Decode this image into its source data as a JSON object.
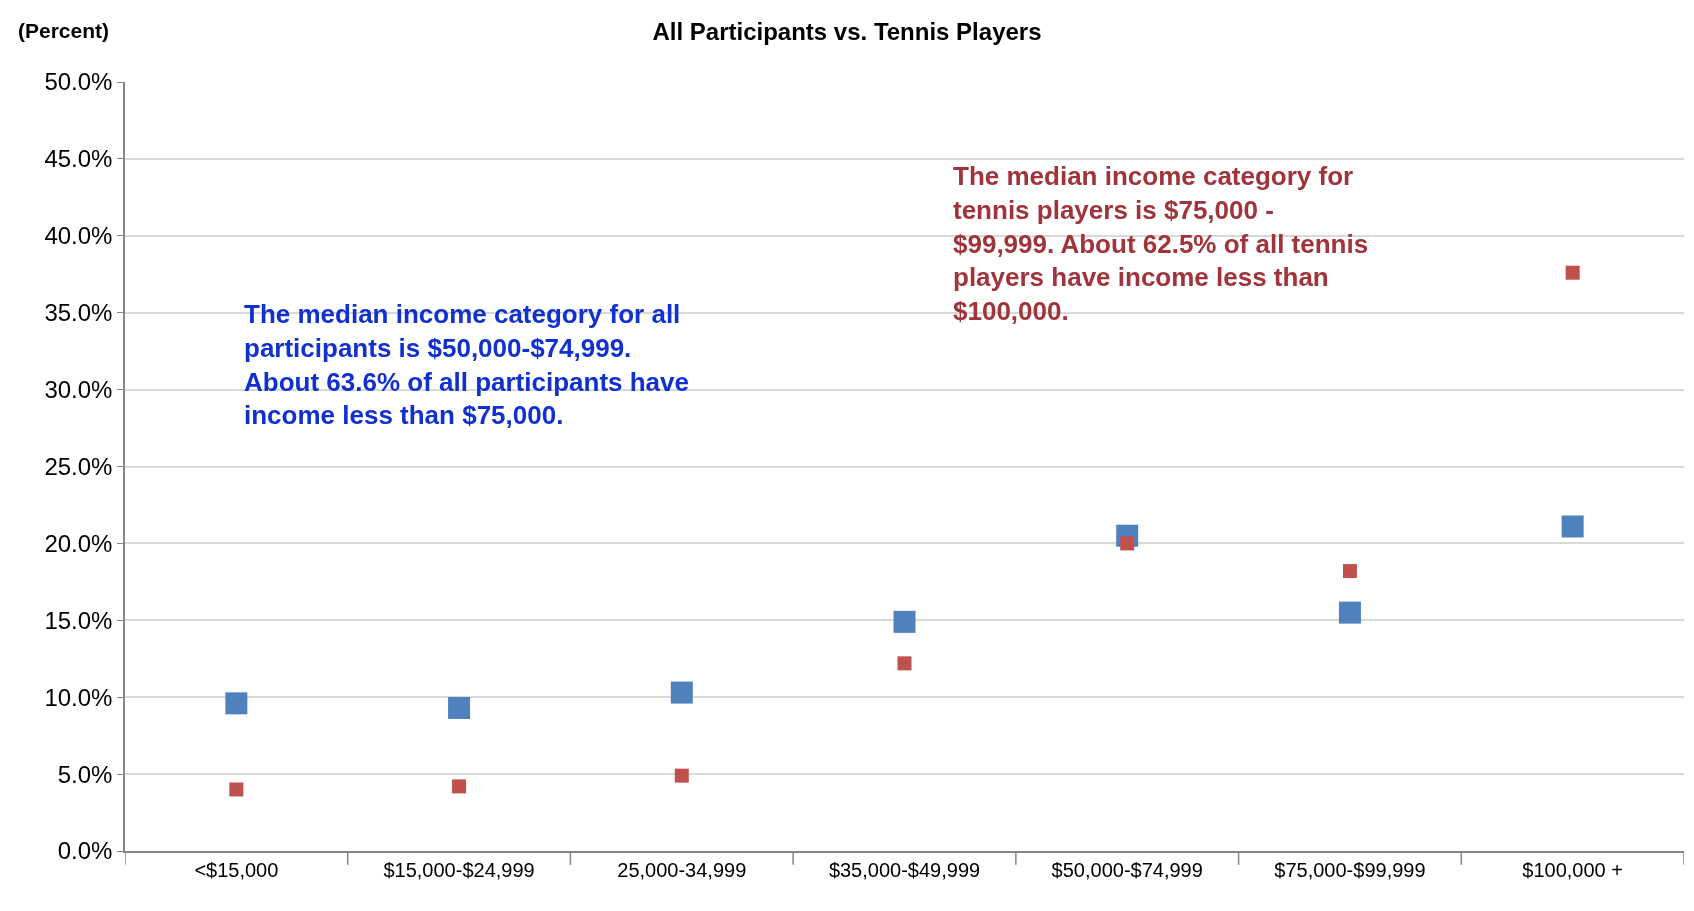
{
  "chart_data": {
    "type": "scatter",
    "title": "All Participants vs. Tennis Players",
    "ylabel": "(Percent)",
    "categories": [
      "<$15,000",
      "$15,000-$24,999",
      "25,000-34,999",
      "$35,000-$49,999",
      "$50,000-$74,999",
      "$75,000-$99,999",
      "$100,000 +"
    ],
    "series": [
      {
        "color": "#4f81bd",
        "values": [
          9.6,
          9.3,
          10.3,
          14.9,
          20.5,
          15.5,
          21.1
        ]
      },
      {
        "color": "#c0504d",
        "values": [
          4.0,
          4.2,
          4.9,
          12.2,
          20.0,
          18.2,
          37.6
        ]
      }
    ],
    "ylim": [
      0,
      50
    ],
    "yticks": [
      {
        "value": 0,
        "label": "0.0%"
      },
      {
        "value": 5,
        "label": "5.0%"
      },
      {
        "value": 10,
        "label": "10.0%"
      },
      {
        "value": 15,
        "label": "15.0%"
      },
      {
        "value": 20,
        "label": "20.0%"
      },
      {
        "value": 25,
        "label": "25.0%"
      },
      {
        "value": 30,
        "label": "30.0%"
      },
      {
        "value": 35,
        "label": "35.0%"
      },
      {
        "value": 40,
        "label": "40.0%"
      },
      {
        "value": 45,
        "label": "45.0%"
      },
      {
        "value": 50,
        "label": "50.0%"
      }
    ],
    "grid": "y",
    "marker": "square",
    "annotations": [
      "The median income category for all participants is $50,000-$74,999.  About 63.6% of all participants have income less than $75,000.",
      "The median income category for tennis players is $75,000 - $99,999. About 62.5% of all tennis players have income less than $100,000."
    ]
  }
}
